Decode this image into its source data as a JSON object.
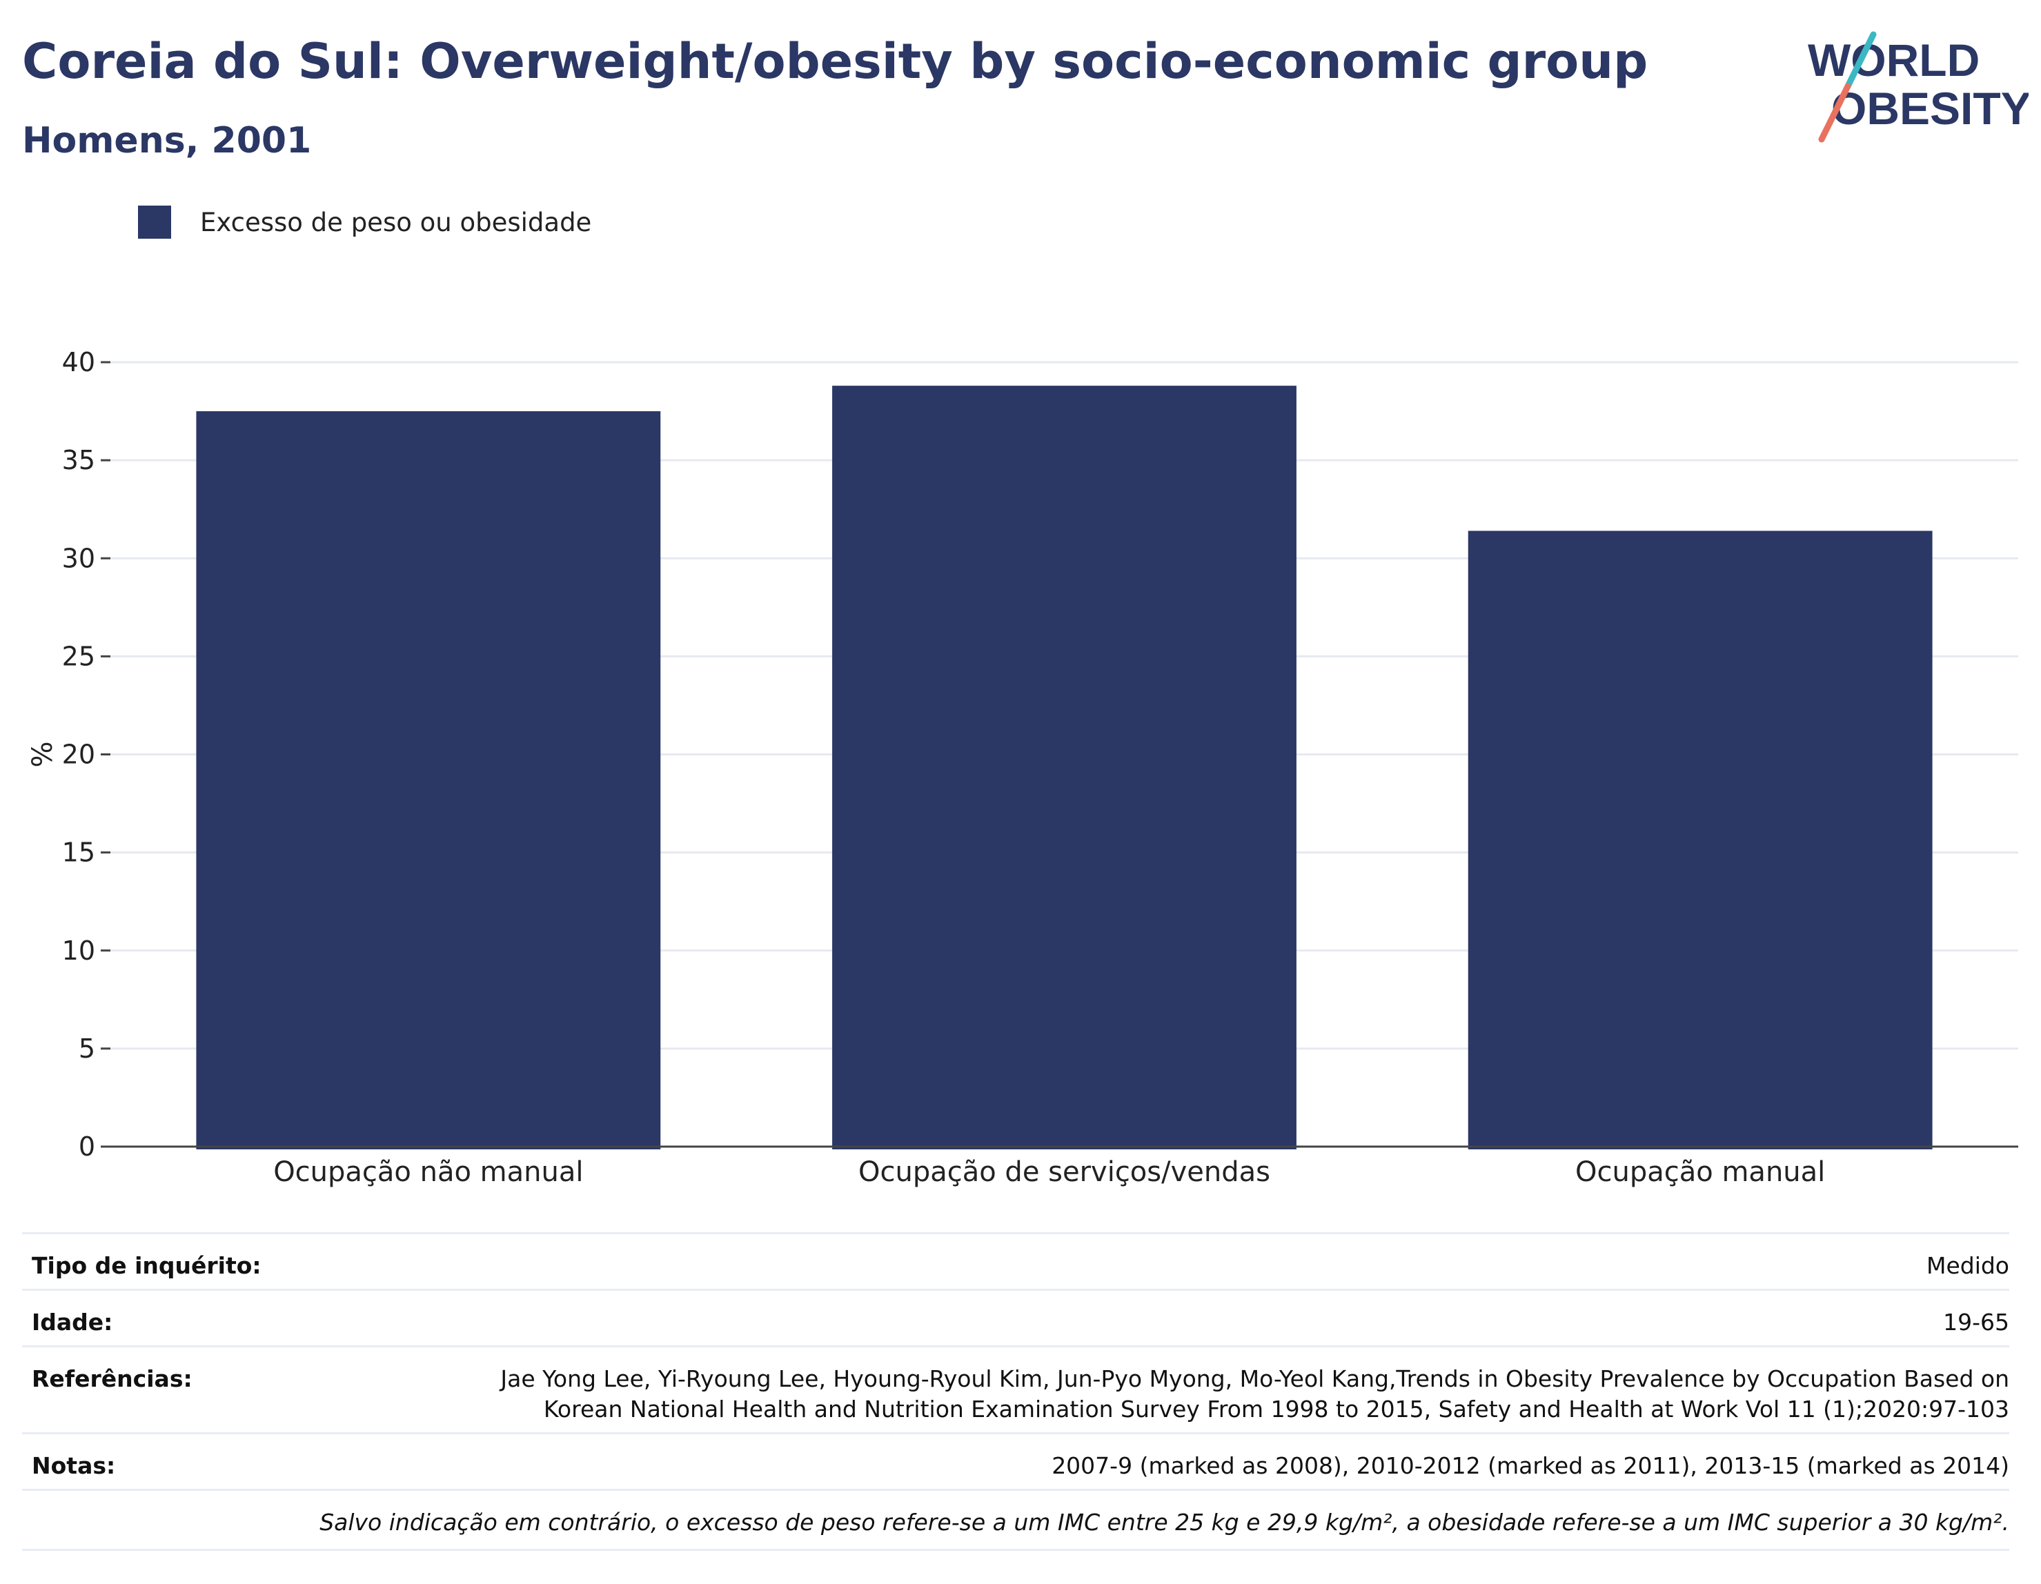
{
  "title": "Coreia do Sul: Overweight/obesity by socio-economic group",
  "subtitle": "Homens, 2001",
  "logo": {
    "line1": "WORLD",
    "line2": "OBESITY"
  },
  "legend": {
    "label": "Excesso de peso ou obesidade",
    "color": "#2b3764"
  },
  "chart_data": {
    "type": "bar",
    "categories": [
      "Ocupação não manual",
      "Ocupação de serviços/vendas",
      "Ocupação manual"
    ],
    "series": [
      {
        "name": "Excesso de peso ou obesidade",
        "values": [
          37.5,
          38.8,
          31.4
        ],
        "color": "#2b3764"
      }
    ],
    "title": "",
    "xlabel": "",
    "ylabel": "%",
    "ylim": [
      0,
      40
    ],
    "yticks": [
      0,
      5,
      10,
      15,
      20,
      25,
      30,
      35,
      40
    ],
    "grid": true,
    "legend_position": "top-left"
  },
  "info": {
    "survey_type": {
      "label": "Tipo de inquérito:",
      "value": "Medido"
    },
    "age": {
      "label": "Idade:",
      "value": "19-65"
    },
    "references": {
      "label": "Referências:",
      "line1": "Jae Yong Lee, Yi-Ryoung Lee, Hyoung-Ryoul Kim, Jun-Pyo Myong, Mo-Yeol Kang,Trends in Obesity Prevalence by Occupation Based on",
      "line2": "Korean National Health and Nutrition Examination Survey From 1998 to 2015, Safety and Health at Work Vol 11 (1);2020:97-103"
    },
    "notes": {
      "label": "Notas:",
      "value": "2007-9 (marked as 2008), 2010-2012 (marked as 2011), 2013-15 (marked as 2014)"
    },
    "footnote": "Salvo indicação em contrário, o excesso de peso refere-se a um IMC entre 25 kg e 29,9 kg/m², a obesidade refere-se a um IMC superior a 30 kg/m²."
  }
}
